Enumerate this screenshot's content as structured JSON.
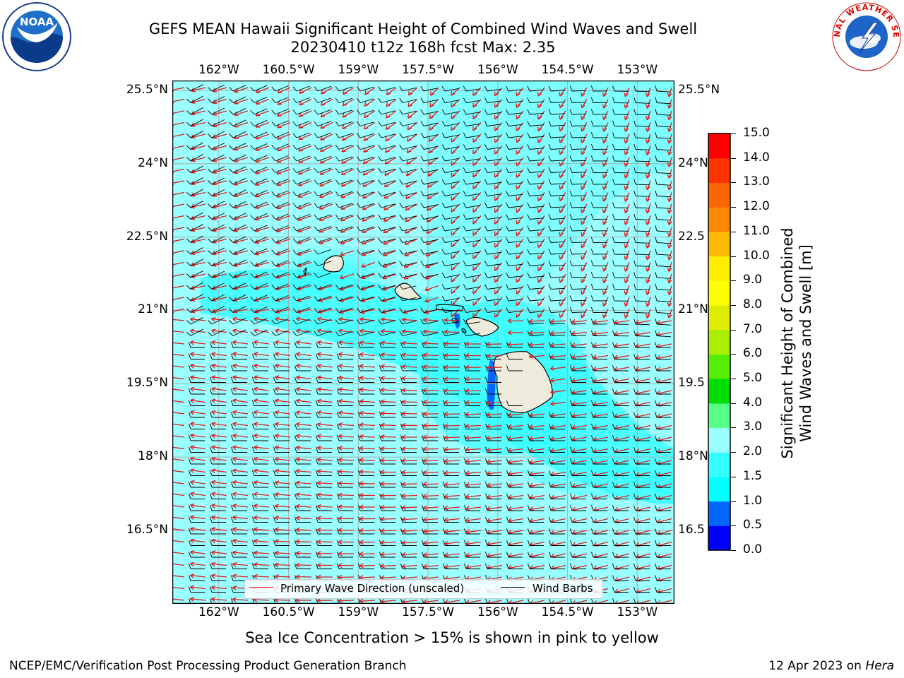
{
  "title": {
    "line1": "GEFS MEAN Hawaii Significant Height of Combined Wind Waves and Swell",
    "line2": "20230410 t12z 168h fcst   Max: 2.35"
  },
  "logos": {
    "left": "noaa-logo-icon",
    "right": "nws-logo-icon",
    "nws_text": "NATIONAL WEATHER SERVICE"
  },
  "map": {
    "lon_ticks": [
      "162°W",
      "160.5°W",
      "159°W",
      "157.5°W",
      "156°W",
      "154.5°W",
      "153°W"
    ],
    "lat_ticks": [
      "25.5°N",
      "24°N",
      "22.5°N",
      "21°N",
      "19.5°N",
      "18°N",
      "16.5°N"
    ],
    "lat_ticks_right": [
      "25.5°N",
      "24°N",
      "22.5",
      "21°N",
      "19.5",
      "18°N",
      "16.5"
    ],
    "lon_values": [
      -162,
      -160.5,
      -159,
      -157.5,
      -156,
      -154.5,
      -153
    ],
    "lat_values": [
      25.5,
      24,
      22.5,
      21,
      19.5,
      18,
      16.5
    ],
    "extent": {
      "lon_min": -163.0,
      "lon_max": -152.2,
      "lat_min": 15.0,
      "lat_max": 25.7
    },
    "grid": true
  },
  "colorbar": {
    "label_line1": "Significant Height of Combined",
    "label_line2": "Wind Waves and Swell [m]",
    "ticks": [
      "15.0",
      "14.0",
      "13.0",
      "12.0",
      "11.0",
      "10.0",
      "9.0",
      "8.0",
      "7.0",
      "6.0",
      "5.0",
      "4.0",
      "3.0",
      "2.0",
      "1.5",
      "1.0",
      "0.5",
      "0.0"
    ],
    "levels": [
      0,
      0.5,
      1,
      1.5,
      2,
      3,
      4,
      5,
      6,
      7,
      8,
      9,
      10,
      11,
      12,
      13,
      14,
      15
    ],
    "colors": [
      "#0000ff",
      "#0066ff",
      "#00ffff",
      "#33ffff",
      "#99ffff",
      "#55ff88",
      "#00dd00",
      "#55ee00",
      "#aaee00",
      "#ddee00",
      "#ffff00",
      "#ffee00",
      "#ffbb00",
      "#ff8800",
      "#ff6600",
      "#ff3300",
      "#ff0000"
    ]
  },
  "legend": {
    "wave": {
      "label": "Primary Wave Direction (unscaled)",
      "color": "#e31a1c"
    },
    "wind": {
      "label": "Wind Barbs",
      "color": "#000000"
    }
  },
  "chart_data": {
    "type": "heatmap",
    "title": "GEFS MEAN Hawaii Significant Height of Combined Wind Waves and Swell",
    "subtitle": "20230410 t12z 168h fcst   Max: 2.35",
    "max_value": 2.35,
    "units": "m"
  },
  "subcaption": "Sea Ice Concentration > 15% is shown in pink to yellow",
  "footer": {
    "left": "NCEP/EMC/Verification Post Processing Product Generation Branch",
    "right_prefix": "12 Apr 2023 on ",
    "right_host": "Hera"
  }
}
